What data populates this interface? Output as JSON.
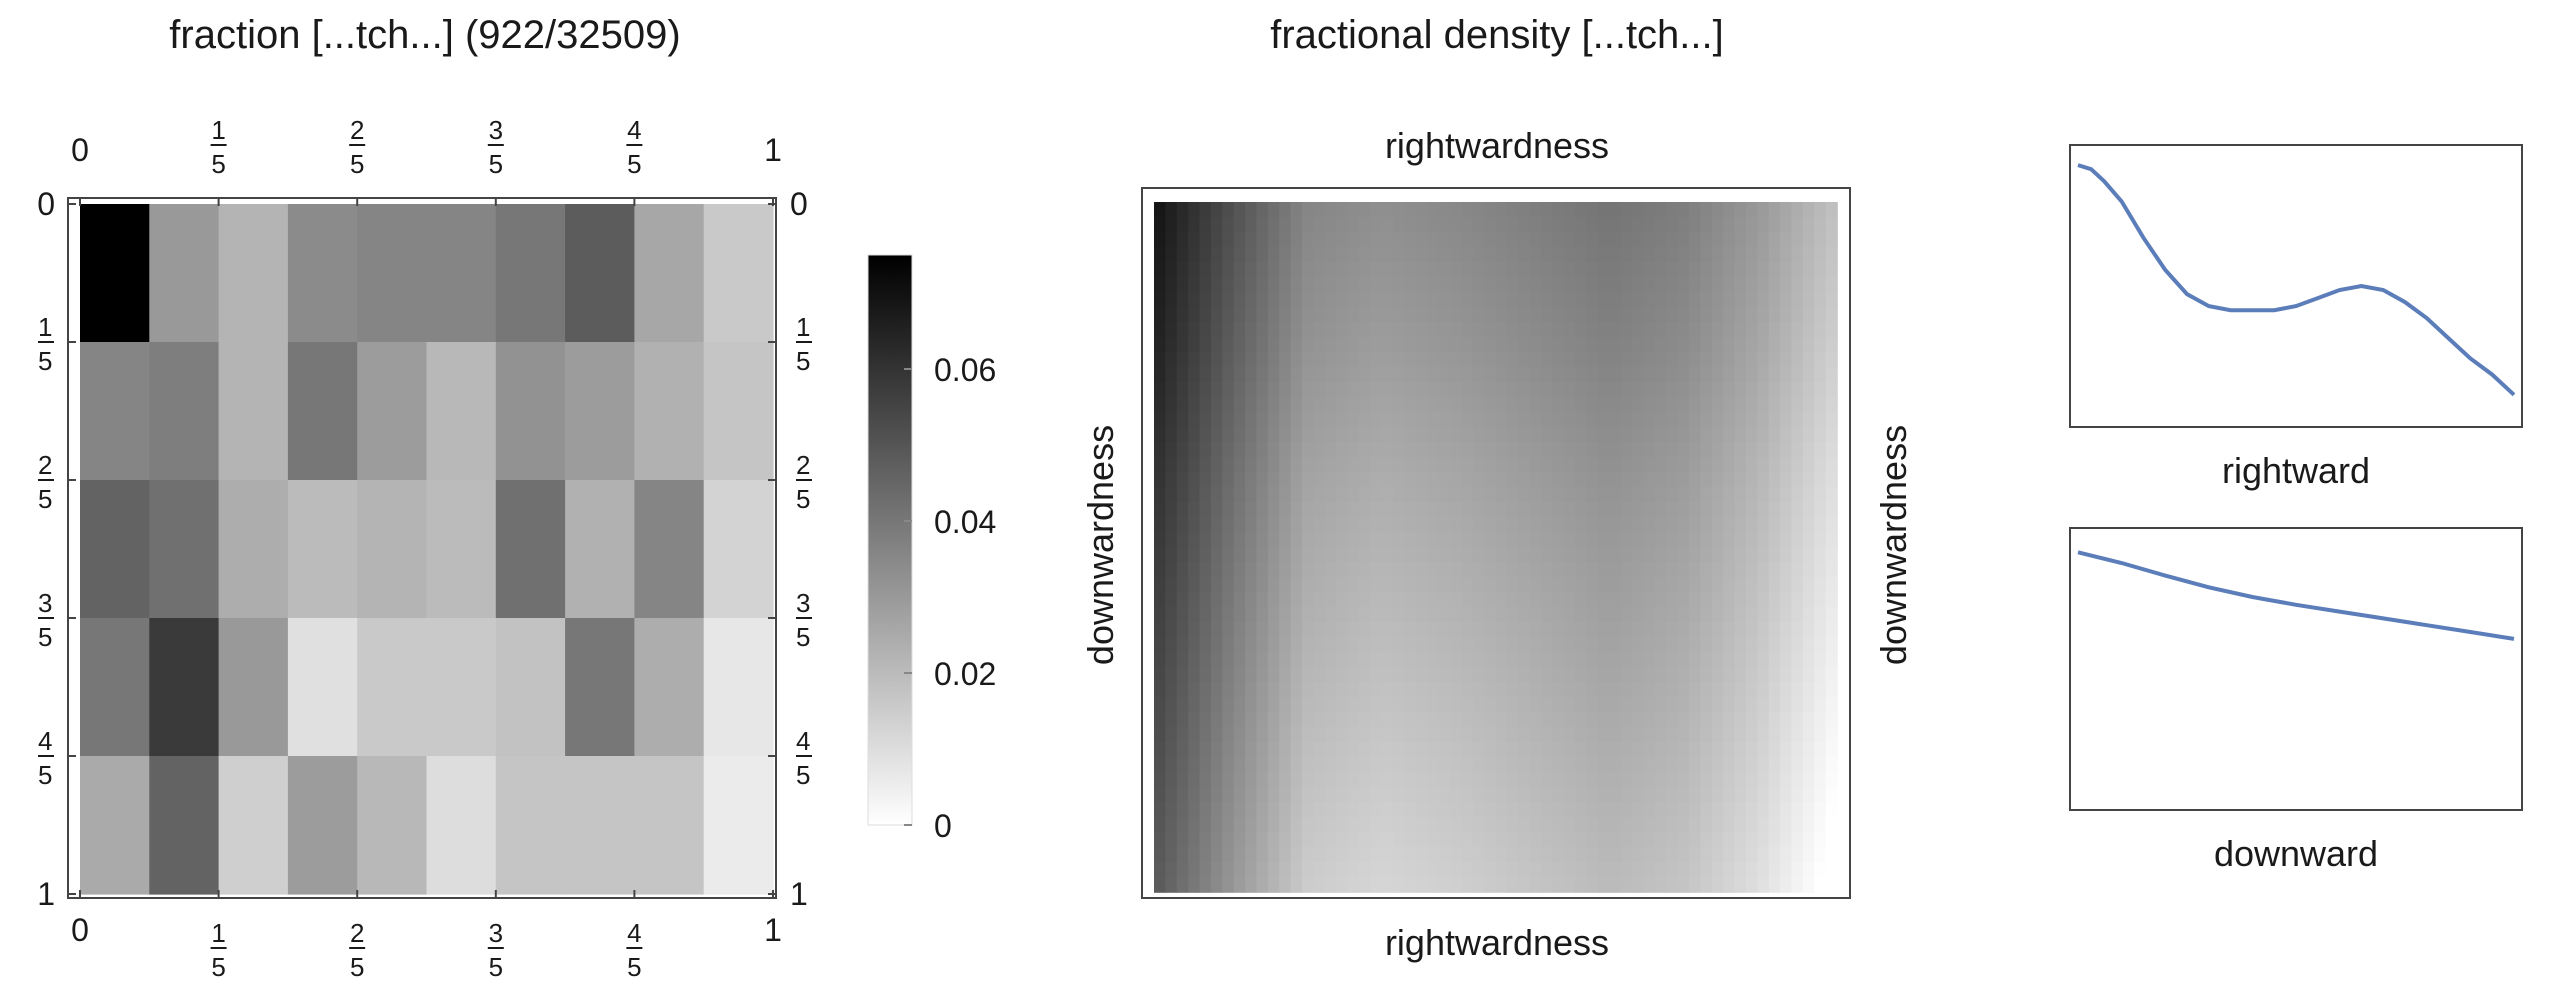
{
  "colors": {
    "scale_low": "#ffffff",
    "scale_high": "#000000",
    "line": "#5b7db9",
    "frame": "#444444"
  },
  "chart_data": [
    {
      "type": "heatmap",
      "title": "fraction [...tch...]  (922/32509)",
      "x_ticks": [
        {
          "v": 0,
          "label": "0"
        },
        {
          "v": 0.2,
          "num": "1",
          "den": "5"
        },
        {
          "v": 0.4,
          "num": "2",
          "den": "5"
        },
        {
          "v": 0.6,
          "num": "3",
          "den": "5"
        },
        {
          "v": 0.8,
          "num": "4",
          "den": "5"
        },
        {
          "v": 1,
          "label": "1"
        }
      ],
      "y_ticks": [
        {
          "v": 0,
          "label": "0"
        },
        {
          "v": 0.2,
          "num": "1",
          "den": "5"
        },
        {
          "v": 0.4,
          "num": "2",
          "den": "5"
        },
        {
          "v": 0.6,
          "num": "3",
          "den": "5"
        },
        {
          "v": 0.8,
          "num": "4",
          "den": "5"
        },
        {
          "v": 1,
          "label": "1"
        }
      ],
      "xlim": [
        0,
        1
      ],
      "ylim": [
        0,
        1
      ],
      "grid": false,
      "rows": 5,
      "cols": 10,
      "values": [
        [
          0.075,
          0.03,
          0.022,
          0.034,
          0.036,
          0.036,
          0.04,
          0.048,
          0.026,
          0.016
        ],
        [
          0.036,
          0.038,
          0.022,
          0.04,
          0.029,
          0.021,
          0.032,
          0.029,
          0.023,
          0.017
        ],
        [
          0.046,
          0.042,
          0.024,
          0.02,
          0.022,
          0.02,
          0.042,
          0.023,
          0.036,
          0.013
        ],
        [
          0.04,
          0.058,
          0.03,
          0.009,
          0.016,
          0.016,
          0.018,
          0.04,
          0.024,
          0.007
        ],
        [
          0.025,
          0.046,
          0.014,
          0.029,
          0.021,
          0.01,
          0.017,
          0.017,
          0.017,
          0.006
        ]
      ],
      "colorbar": {
        "min": 0,
        "max": 0.075,
        "ticks": [
          {
            "v": 0,
            "label": "0"
          },
          {
            "v": 0.02,
            "label": "0.02"
          },
          {
            "v": 0.04,
            "label": "0.04"
          },
          {
            "v": 0.06,
            "label": "0.06"
          }
        ]
      }
    },
    {
      "type": "heatmap",
      "title": "fractional density [...tch...]",
      "xlabel": "rightwardness",
      "ylabel": "downwardness",
      "x_profile": [
        0.07,
        0.052,
        0.036,
        0.033,
        0.035,
        0.038,
        0.041,
        0.038,
        0.03,
        0.018
      ],
      "y_profile": [
        0.0,
        -0.004,
        -0.009,
        -0.013,
        -0.017,
        -0.021
      ]
    },
    {
      "type": "line",
      "xlabel": "rightward",
      "x": [
        0,
        0.03,
        0.06,
        0.1,
        0.15,
        0.2,
        0.25,
        0.3,
        0.35,
        0.4,
        0.45,
        0.5,
        0.55,
        0.6,
        0.65,
        0.7,
        0.75,
        0.8,
        0.85,
        0.9,
        0.95,
        1.0
      ],
      "y": [
        0.07,
        0.069,
        0.066,
        0.061,
        0.052,
        0.044,
        0.038,
        0.035,
        0.034,
        0.034,
        0.034,
        0.035,
        0.037,
        0.039,
        0.04,
        0.039,
        0.036,
        0.032,
        0.027,
        0.022,
        0.018,
        0.013
      ],
      "ylim": [
        0.005,
        0.075
      ]
    },
    {
      "type": "line",
      "xlabel": "downward",
      "x": [
        0,
        0.1,
        0.2,
        0.3,
        0.4,
        0.5,
        0.6,
        0.7,
        0.8,
        0.9,
        1.0
      ],
      "y": [
        0.0265,
        0.0254,
        0.0241,
        0.0229,
        0.0219,
        0.0211,
        0.0204,
        0.0197,
        0.019,
        0.0183,
        0.0176
      ],
      "ylim": [
        0.0,
        0.029
      ]
    }
  ]
}
